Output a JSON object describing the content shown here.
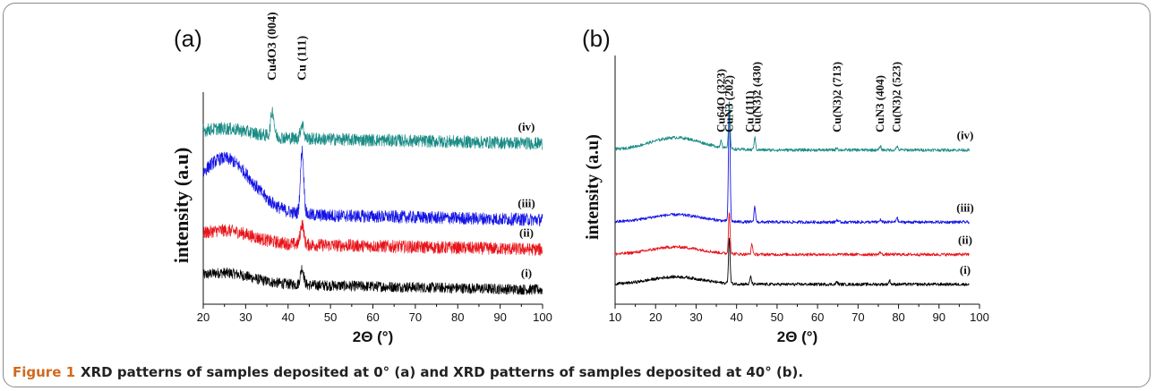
{
  "caption": {
    "label": "Figure 1",
    "text": "XRD patterns of samples deposited at 0° (a) and XRD patterns of samples deposited at 40° (b)."
  },
  "colors": {
    "i": "#000000",
    "ii": "#e8141a",
    "iii": "#1414e6",
    "iv": "#1a8c86"
  },
  "chart_data": [
    {
      "type": "line",
      "panel_label": "(a)",
      "xlabel": "2Θ (°)",
      "ylabel": "intensity (a.u)",
      "xlim": [
        20,
        100
      ],
      "xticks": [
        20,
        30,
        40,
        50,
        60,
        70,
        80,
        90,
        100
      ],
      "yticks": [],
      "grid": false,
      "series": [
        {
          "name": "(i)",
          "color_key": "i",
          "baseline": 0.1,
          "broad_amp": 0.05,
          "noise": 0.025,
          "x": [
            20,
            25,
            30,
            35,
            40,
            43.3,
            50,
            60,
            70,
            80,
            90,
            100
          ],
          "y": [
            0.15,
            0.14,
            0.12,
            0.11,
            0.11,
            0.18,
            0.1,
            0.09,
            0.09,
            0.08,
            0.08,
            0.07
          ],
          "peaks": [
            {
              "x": 43.3,
              "h": 0.08
            }
          ]
        },
        {
          "name": "(ii)",
          "color_key": "ii",
          "baseline": 0.29,
          "broad_amp": 0.06,
          "noise": 0.03,
          "x": [
            20,
            25,
            30,
            35,
            40,
            43.3,
            50,
            60,
            70,
            80,
            90,
            100
          ],
          "y": [
            0.34,
            0.33,
            0.31,
            0.29,
            0.28,
            0.38,
            0.26,
            0.25,
            0.25,
            0.24,
            0.24,
            0.23
          ],
          "peaks": [
            {
              "x": 43.3,
              "h": 0.1
            }
          ]
        },
        {
          "name": "(iii)",
          "color_key": "iii",
          "baseline": 0.43,
          "broad_amp": 0.26,
          "noise": 0.03,
          "x": [
            20,
            24,
            28,
            32,
            36,
            40,
            43.3,
            50,
            60,
            70,
            80,
            90,
            100
          ],
          "y": [
            0.6,
            0.69,
            0.66,
            0.6,
            0.53,
            0.46,
            0.75,
            0.43,
            0.42,
            0.41,
            0.4,
            0.4,
            0.39
          ],
          "peaks": [
            {
              "x": 43.3,
              "h": 0.3
            }
          ]
        },
        {
          "name": "(iv)",
          "color_key": "iv",
          "baseline": 0.79,
          "broad_amp": 0.04,
          "noise": 0.03,
          "x": [
            20,
            30,
            36.3,
            40,
            43.3,
            50,
            60,
            70,
            80,
            90,
            100
          ],
          "y": [
            0.83,
            0.82,
            0.92,
            0.8,
            0.86,
            0.79,
            0.78,
            0.78,
            0.77,
            0.77,
            0.76
          ],
          "peaks": [
            {
              "x": 36.3,
              "h": 0.12
            },
            {
              "x": 43.3,
              "h": 0.07
            }
          ]
        }
      ],
      "annotations": [
        {
          "text": "Cu4O3 (004)",
          "x": 36.3
        },
        {
          "text": "Cu (111)",
          "x": 43.3
        }
      ]
    },
    {
      "type": "line",
      "panel_label": "(b)",
      "xlabel": "2Θ (°)",
      "ylabel": "intensity (a.u)",
      "xlim": [
        10,
        100
      ],
      "xticks": [
        10,
        20,
        30,
        40,
        50,
        60,
        70,
        80,
        90,
        100
      ],
      "yticks": [],
      "grid": false,
      "series": [
        {
          "name": "(i)",
          "color_key": "i",
          "baseline": 0.08,
          "broad_amp": 0.03,
          "noise": 0.006,
          "x": [
            10,
            25,
            38.2,
            43.5,
            65,
            78,
            97
          ],
          "y": [
            0.08,
            0.11,
            0.27,
            0.11,
            0.09,
            0.09,
            0.08
          ],
          "peaks": [
            {
              "x": 38.2,
              "h": 0.18
            },
            {
              "x": 43.5,
              "h": 0.03
            },
            {
              "x": 64.8,
              "h": 0.01
            },
            {
              "x": 77.8,
              "h": 0.015
            }
          ]
        },
        {
          "name": "(ii)",
          "color_key": "ii",
          "baseline": 0.2,
          "broad_amp": 0.03,
          "noise": 0.006,
          "x": [
            10,
            25,
            38.2,
            43.8,
            65,
            75.5,
            97
          ],
          "y": [
            0.2,
            0.23,
            0.39,
            0.24,
            0.21,
            0.22,
            0.2
          ],
          "peaks": [
            {
              "x": 38.2,
              "h": 0.17
            },
            {
              "x": 43.8,
              "h": 0.04
            },
            {
              "x": 75.5,
              "h": 0.01
            }
          ]
        },
        {
          "name": "(iii)",
          "color_key": "iii",
          "baseline": 0.33,
          "broad_amp": 0.03,
          "noise": 0.006,
          "x": [
            10,
            25,
            38.2,
            44.5,
            65,
            79.5,
            97
          ],
          "y": [
            0.33,
            0.36,
            0.82,
            0.39,
            0.34,
            0.35,
            0.33
          ],
          "peaks": [
            {
              "x": 38.2,
              "h": 0.48
            },
            {
              "x": 44.5,
              "h": 0.06
            },
            {
              "x": 64.8,
              "h": 0.01
            },
            {
              "x": 75.5,
              "h": 0.01
            },
            {
              "x": 79.6,
              "h": 0.02
            }
          ]
        },
        {
          "name": "(iv)",
          "color_key": "iv",
          "baseline": 0.62,
          "broad_amp": 0.05,
          "noise": 0.006,
          "x": [
            10,
            27,
            36.2,
            38.2,
            44.5,
            65,
            75.5,
            79.6,
            97
          ],
          "y": [
            0.62,
            0.67,
            0.66,
            0.8,
            0.66,
            0.63,
            0.64,
            0.63,
            0.62
          ],
          "peaks": [
            {
              "x": 36.2,
              "h": 0.03
            },
            {
              "x": 38.2,
              "h": 0.18
            },
            {
              "x": 44.5,
              "h": 0.05
            },
            {
              "x": 64.8,
              "h": 0.01
            },
            {
              "x": 75.5,
              "h": 0.015
            },
            {
              "x": 79.6,
              "h": 0.015
            }
          ]
        }
      ],
      "annotations": [
        {
          "text": "Cu64O (323)",
          "x": 36.2
        },
        {
          "text": "CuN3  (202)",
          "x": 38.2
        },
        {
          "text": "Cu (111)",
          "x": 43.3
        },
        {
          "text": "Cu(N3)2 (430)",
          "x": 45.0
        },
        {
          "text": "Cu(N3)2 (713)",
          "x": 64.8
        },
        {
          "text": "CuN3 (404)",
          "x": 75.5
        },
        {
          "text": "Cu(N3)2 (523)",
          "x": 79.6
        }
      ]
    }
  ]
}
